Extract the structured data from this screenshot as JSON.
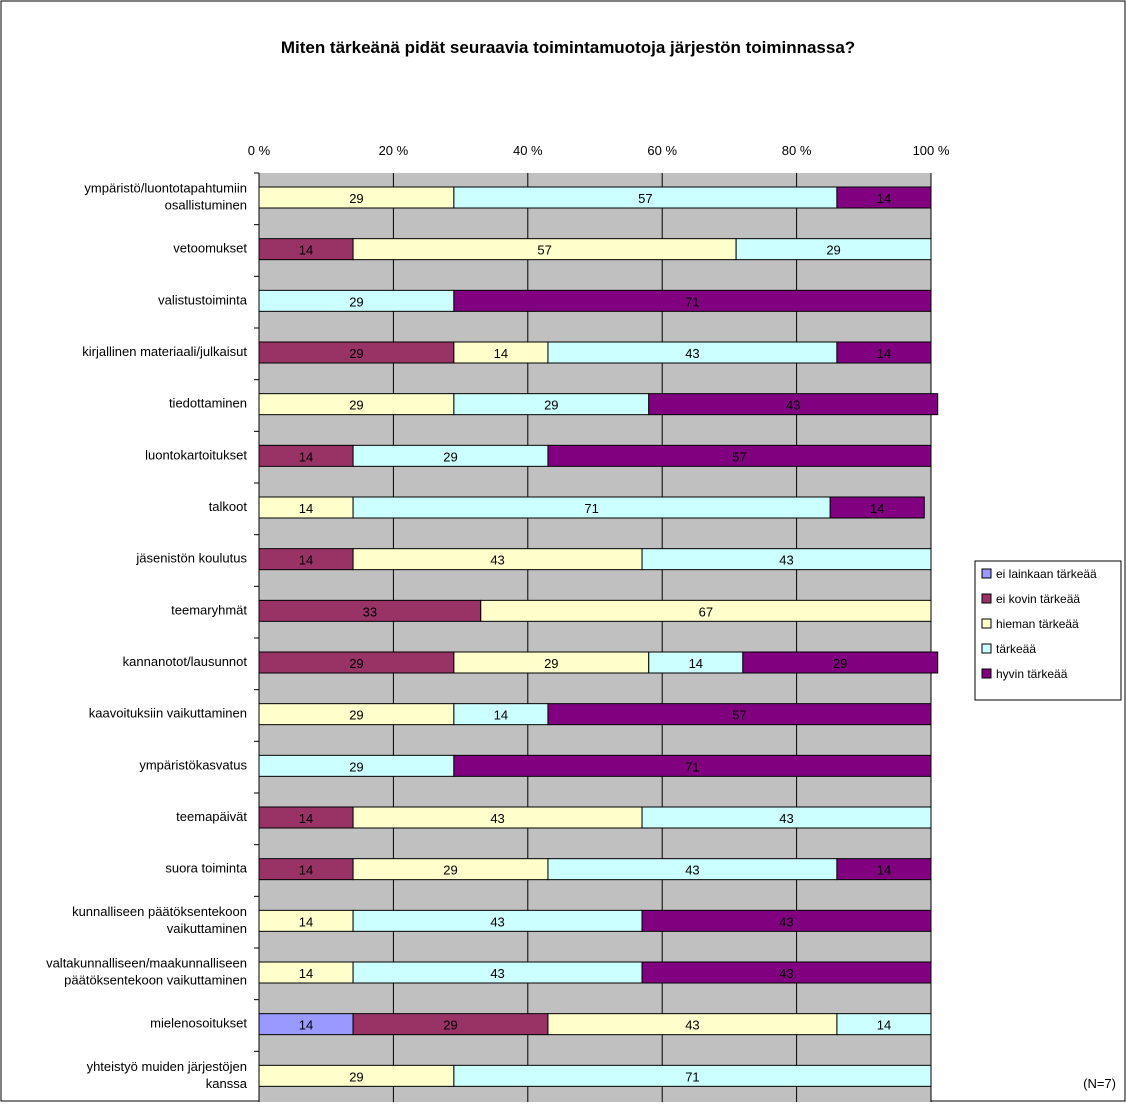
{
  "chart_data": {
    "type": "bar",
    "orientation": "horizontal",
    "stacked": "percent",
    "title": "Miten tärkeänä pidät seuraavia toimintamuotoja järjestön toiminnassa?",
    "note": "(N=7)",
    "xlim": [
      0,
      100
    ],
    "ticks": [
      "0 %",
      "20 %",
      "40 %",
      "60 %",
      "80 %",
      "100 %"
    ],
    "tick_values": [
      0,
      20,
      40,
      60,
      80,
      100
    ],
    "grid": true,
    "legend_position": "right",
    "categories": [
      [
        "ympäristö/luontotapahtumiin",
        "osallistuminen"
      ],
      [
        "vetoomukset"
      ],
      [
        "valistustoiminta"
      ],
      [
        "kirjallinen materiaali/julkaisut"
      ],
      [
        "tiedottaminen"
      ],
      [
        "luontokartoitukset"
      ],
      [
        "talkoot"
      ],
      [
        "jäsenistön koulutus"
      ],
      [
        "teemaryhmät"
      ],
      [
        "kannanotot/lausunnot"
      ],
      [
        "kaavoituksiin vaikuttaminen"
      ],
      [
        "ympäristökasvatus"
      ],
      [
        "teemapäivät"
      ],
      [
        "suora toiminta"
      ],
      [
        "kunnalliseen päätöksentekoon",
        "vaikuttaminen"
      ],
      [
        "valtakunnalliseen/maakunnalliseen",
        "päätöksentekoon vaikuttaminen"
      ],
      [
        "mielenosoitukset"
      ],
      [
        "yhteistyö muiden järjestöjen",
        "kanssa"
      ]
    ],
    "series": [
      {
        "name": "ei lainkaan tärkeää",
        "color": "#9999ff",
        "values": [
          0,
          0,
          0,
          0,
          0,
          0,
          0,
          0,
          0,
          0,
          0,
          0,
          0,
          0,
          0,
          0,
          14,
          0
        ]
      },
      {
        "name": "ei kovin tärkeää",
        "color": "#993366",
        "values": [
          0,
          14,
          0,
          29,
          0,
          14,
          0,
          14,
          33,
          29,
          0,
          0,
          14,
          14,
          0,
          0,
          29,
          0
        ]
      },
      {
        "name": "hieman tärkeää",
        "color": "#ffffcc",
        "values": [
          29,
          57,
          0,
          14,
          29,
          0,
          14,
          43,
          67,
          29,
          29,
          0,
          43,
          29,
          14,
          14,
          43,
          29
        ]
      },
      {
        "name": "tärkeää",
        "color": "#ccffff",
        "values": [
          57,
          29,
          29,
          43,
          29,
          29,
          71,
          43,
          0,
          14,
          14,
          29,
          43,
          43,
          43,
          43,
          14,
          71
        ]
      },
      {
        "name": "hyvin tärkeää",
        "color": "#800080",
        "values": [
          14,
          0,
          71,
          14,
          43,
          57,
          14,
          0,
          0,
          29,
          57,
          71,
          0,
          14,
          43,
          43,
          0,
          0
        ]
      }
    ]
  }
}
